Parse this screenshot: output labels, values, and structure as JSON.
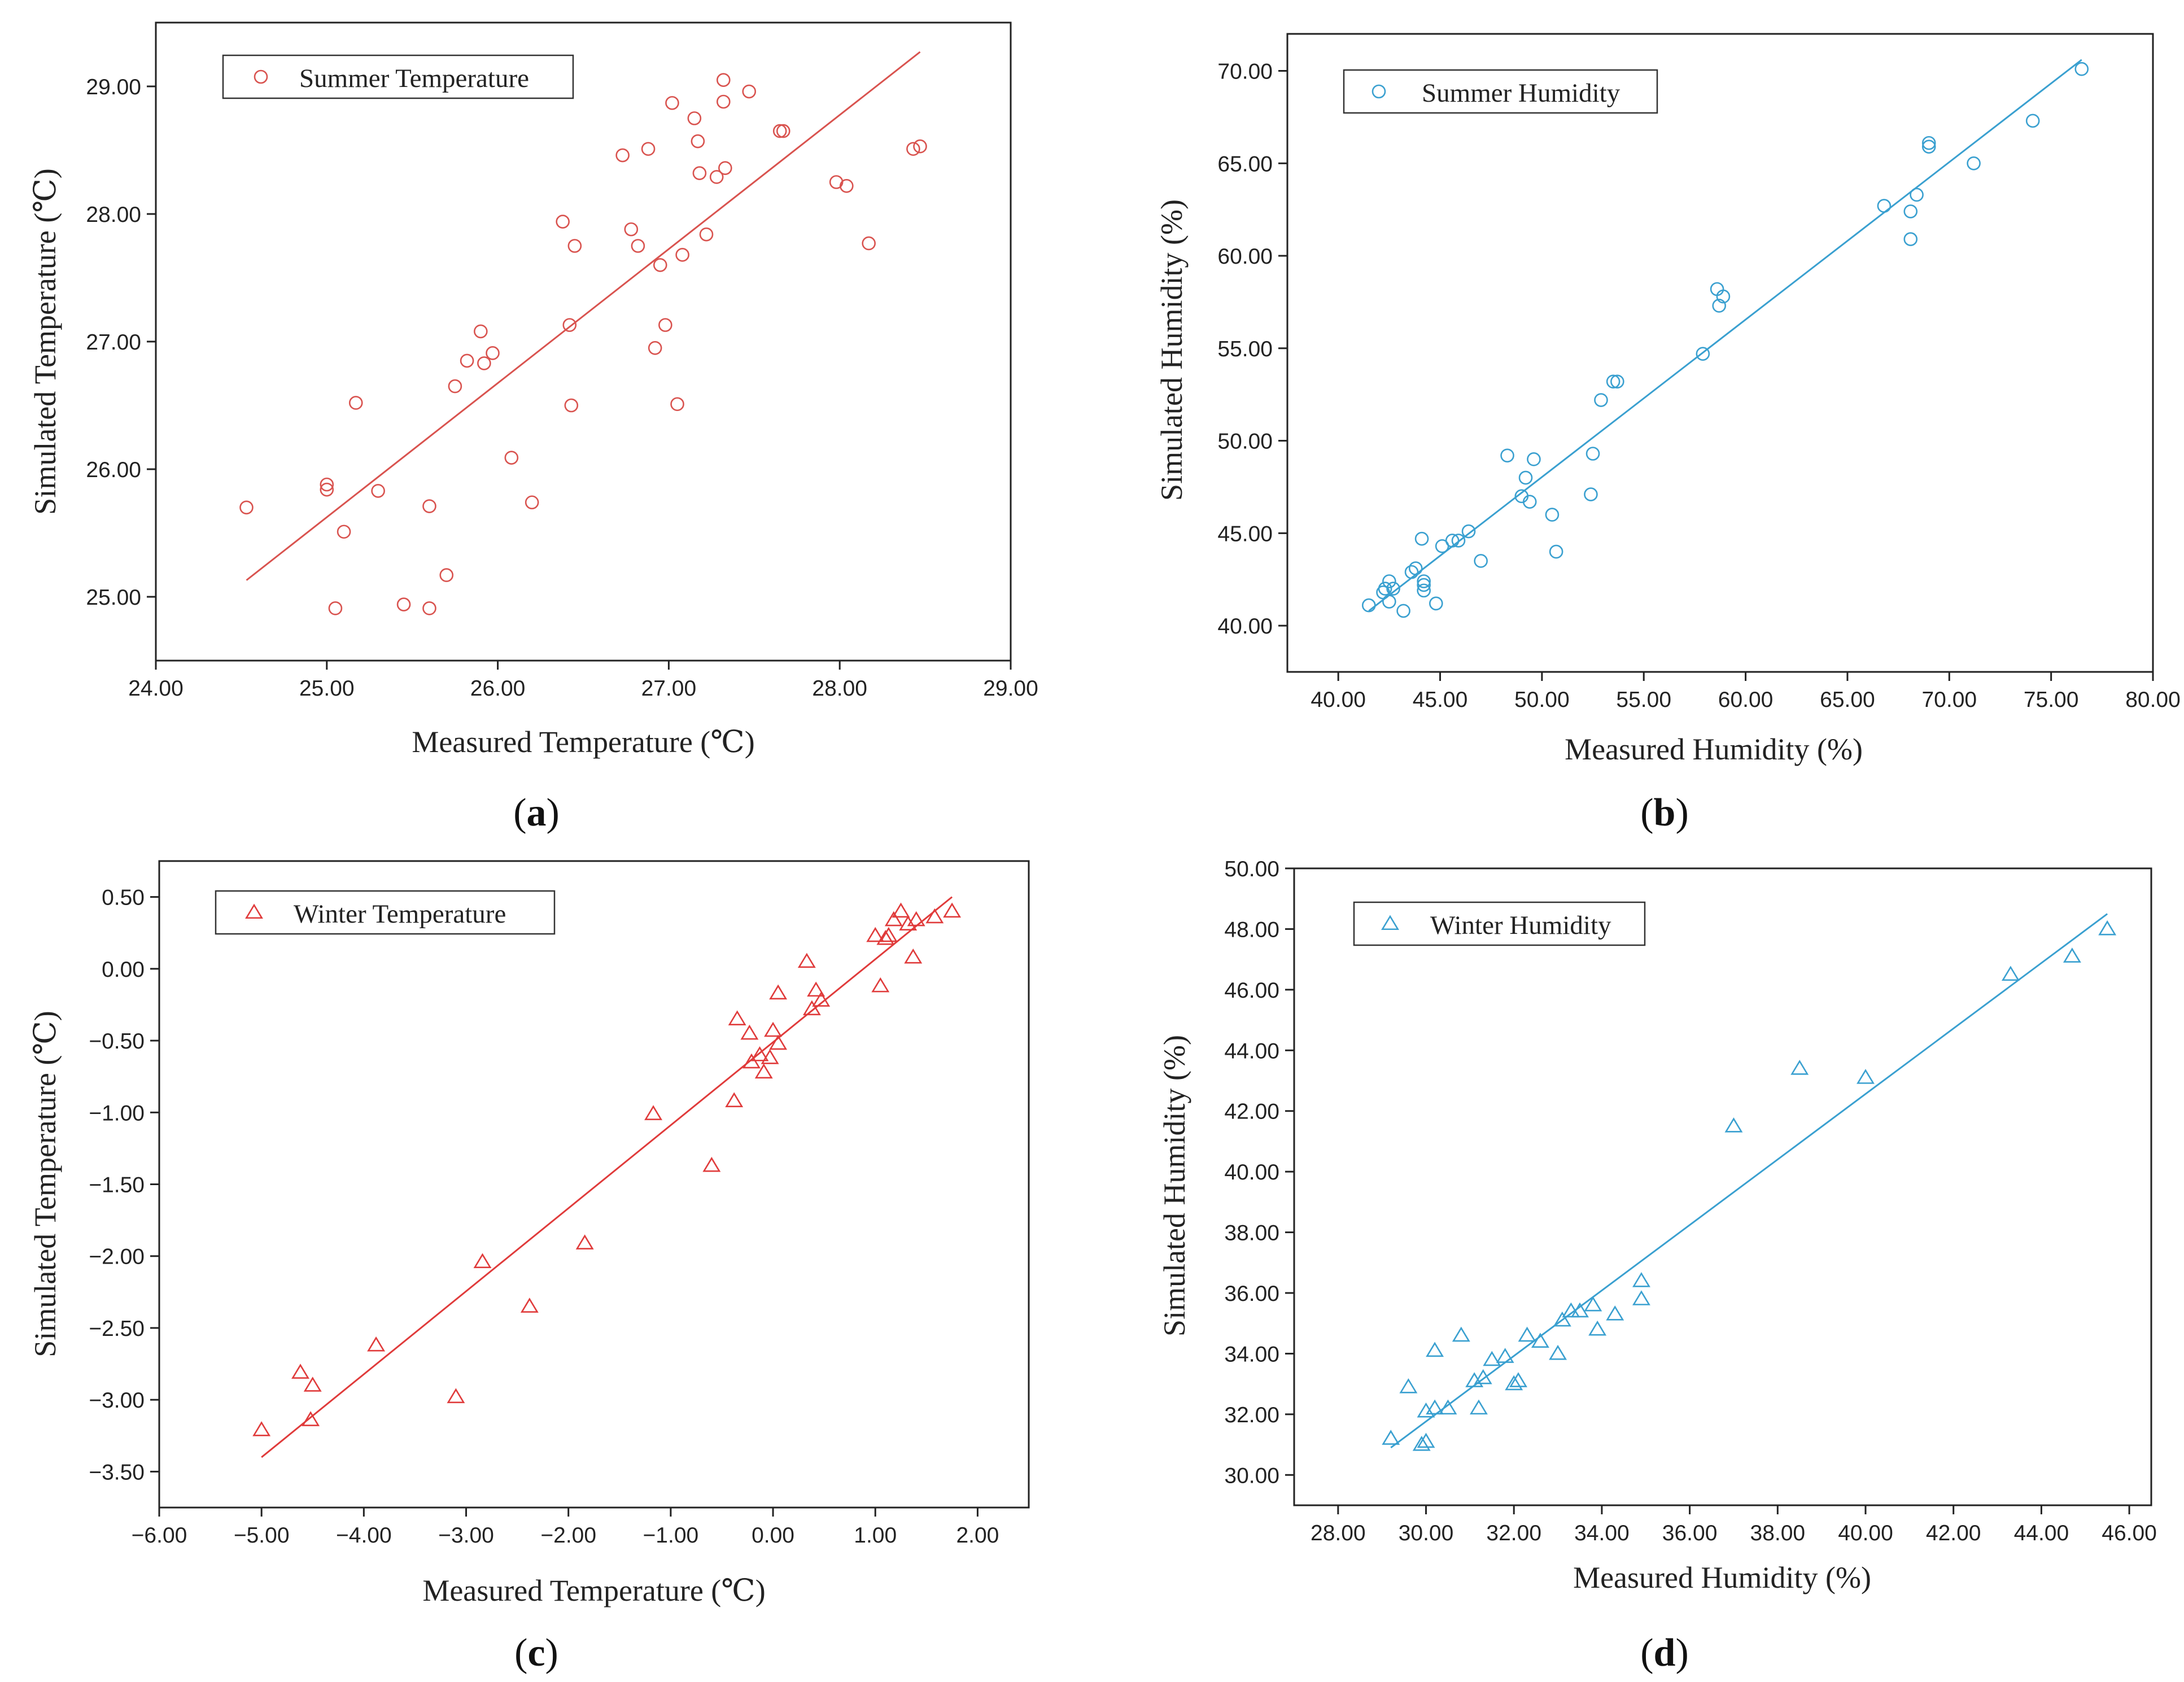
{
  "chart_data": [
    {
      "id": "a",
      "type": "scatter",
      "panel_label": "a",
      "xlabel": "Measured Temperature (℃)",
      "ylabel": "Simulated Temperature (℃)",
      "xlim": [
        24,
        29
      ],
      "ylim": [
        24.5,
        29.5
      ],
      "xticks": [
        24,
        25,
        26,
        27,
        28,
        29
      ],
      "yticks": [
        25,
        26,
        27,
        28,
        29
      ],
      "grid": false,
      "legend_position": "top-left",
      "marker": "circle",
      "color": "#d9534f",
      "series": [
        {
          "name": "Summer Temperature",
          "x": [
            24.53,
            25.0,
            25.0,
            25.05,
            25.1,
            25.17,
            25.3,
            25.45,
            25.6,
            25.6,
            25.7,
            25.75,
            25.82,
            25.9,
            25.92,
            25.97,
            26.08,
            26.2,
            26.38,
            26.42,
            26.43,
            26.45,
            26.73,
            26.78,
            26.82,
            26.88,
            26.92,
            26.95,
            26.98,
            27.02,
            27.05,
            27.08,
            27.15,
            27.17,
            27.18,
            27.22,
            27.28,
            27.32,
            27.32,
            27.33,
            27.47,
            27.65,
            27.67,
            27.98,
            28.04,
            28.17,
            28.43,
            28.47
          ],
          "y": [
            25.7,
            25.88,
            25.84,
            24.91,
            25.51,
            26.52,
            25.83,
            24.94,
            25.71,
            24.91,
            25.17,
            26.65,
            26.85,
            27.08,
            26.83,
            26.91,
            26.09,
            25.74,
            27.94,
            27.13,
            26.5,
            27.75,
            28.46,
            27.88,
            27.75,
            28.51,
            26.95,
            27.6,
            27.13,
            28.87,
            26.51,
            27.68,
            28.75,
            28.57,
            28.32,
            27.84,
            28.29,
            29.05,
            28.88,
            28.36,
            28.96,
            28.65,
            28.65,
            28.25,
            28.22,
            27.77,
            28.51,
            28.53
          ]
        }
      ],
      "fit_line": {
        "x": [
          24.53,
          28.47
        ],
        "y": [
          25.13,
          29.27
        ]
      }
    },
    {
      "id": "b",
      "type": "scatter",
      "panel_label": "b",
      "xlabel": "Measured Humidity (%)",
      "ylabel": "Simulated Humidity (%)",
      "xlim": [
        37.5,
        80
      ],
      "ylim": [
        37.5,
        72
      ],
      "xticks": [
        40,
        45,
        50,
        55,
        60,
        65,
        70,
        75,
        80
      ],
      "yticks": [
        40,
        45,
        50,
        55,
        60,
        65,
        70
      ],
      "grid": false,
      "legend_position": "top-left",
      "marker": "circle",
      "color": "#3aa0d0",
      "series": [
        {
          "name": "Summer Humidity",
          "x": [
            41.5,
            42.2,
            42.3,
            42.5,
            42.5,
            42.7,
            43.2,
            43.6,
            43.8,
            44.1,
            44.2,
            44.2,
            44.2,
            44.8,
            45.1,
            45.6,
            45.9,
            46.4,
            47.0,
            48.3,
            49.0,
            49.2,
            49.4,
            49.6,
            50.5,
            50.7,
            52.4,
            52.5,
            52.9,
            53.5,
            53.7,
            57.9,
            58.6,
            58.7,
            58.9,
            66.8,
            68.1,
            68.1,
            68.4,
            69.0,
            69.0,
            71.2,
            74.1,
            76.5
          ],
          "y": [
            41.1,
            41.8,
            42.0,
            41.3,
            42.4,
            42.0,
            40.8,
            42.9,
            43.1,
            44.7,
            42.4,
            41.9,
            42.2,
            41.2,
            44.3,
            44.6,
            44.6,
            45.1,
            43.5,
            49.2,
            47.0,
            48.0,
            46.7,
            49.0,
            46.0,
            44.0,
            47.1,
            49.3,
            52.2,
            53.2,
            53.2,
            54.7,
            58.2,
            57.3,
            57.8,
            62.7,
            60.9,
            62.4,
            63.3,
            65.9,
            66.1,
            65.0,
            67.3,
            70.1
          ]
        }
      ],
      "fit_line": {
        "x": [
          41.5,
          76.5
        ],
        "y": [
          40.8,
          70.6
        ]
      }
    },
    {
      "id": "c",
      "type": "scatter",
      "panel_label": "c",
      "xlabel": "Measured Temperature (℃)",
      "ylabel": "Simulated Temperature (℃)",
      "xlim": [
        -6,
        2.5
      ],
      "ylim": [
        -3.75,
        0.75
      ],
      "xticks": [
        -6,
        -5,
        -4,
        -3,
        -2,
        -1,
        0,
        1,
        2
      ],
      "yticks": [
        -3.5,
        -3.0,
        -2.5,
        -2.0,
        -1.5,
        -1.0,
        -0.5,
        0.0,
        0.5
      ],
      "grid": false,
      "legend_position": "top-left",
      "marker": "triangle",
      "color": "#e03b3b",
      "series": [
        {
          "name": "Winter Temperature",
          "x": [
            -5.0,
            -4.62,
            -4.52,
            -4.5,
            -3.88,
            -3.1,
            -2.84,
            -2.38,
            -1.84,
            -1.17,
            -0.6,
            -0.38,
            -0.35,
            -0.23,
            -0.21,
            -0.13,
            -0.09,
            -0.03,
            0.0,
            0.05,
            0.05,
            0.33,
            0.38,
            0.42,
            0.47,
            1.0,
            1.05,
            1.1,
            1.13,
            1.18,
            1.25,
            1.32,
            1.37,
            1.4,
            1.58,
            1.75
          ],
          "y": [
            -3.21,
            -2.81,
            -3.14,
            -2.9,
            -2.62,
            -2.98,
            -2.04,
            -2.35,
            -1.91,
            -1.01,
            -1.37,
            -0.92,
            -0.35,
            -0.45,
            -0.65,
            -0.6,
            -0.72,
            -0.62,
            -0.43,
            -0.17,
            -0.52,
            0.05,
            -0.28,
            -0.15,
            -0.22,
            0.23,
            -0.12,
            0.21,
            0.23,
            0.34,
            0.4,
            0.31,
            0.08,
            0.34,
            0.36,
            0.4
          ]
        }
      ],
      "fit_line": {
        "x": [
          -5.0,
          1.75
        ],
        "y": [
          -3.4,
          0.5
        ]
      }
    },
    {
      "id": "d",
      "type": "scatter",
      "panel_label": "d",
      "xlabel": "Measured Humidity (%)",
      "ylabel": "Simulated Humidity (%)",
      "xlim": [
        27,
        46.5
      ],
      "ylim": [
        29,
        50
      ],
      "xticks": [
        28,
        30,
        32,
        34,
        36,
        38,
        40,
        42,
        44,
        46
      ],
      "yticks": [
        30,
        32,
        34,
        36,
        38,
        40,
        42,
        44,
        46,
        48,
        50
      ],
      "grid": false,
      "legend_position": "top-left",
      "marker": "triangle",
      "color": "#3aa0d0",
      "series": [
        {
          "name": "Winter Humidity",
          "x": [
            29.2,
            29.6,
            29.9,
            30.0,
            30.0,
            30.2,
            30.2,
            30.5,
            30.8,
            31.1,
            31.2,
            31.3,
            31.5,
            31.8,
            32.0,
            32.1,
            32.3,
            32.6,
            33.0,
            33.1,
            33.3,
            33.5,
            33.8,
            33.9,
            34.3,
            34.9,
            34.9,
            37.0,
            38.5,
            40.0,
            43.3,
            44.7,
            45.5
          ],
          "y": [
            31.2,
            32.9,
            31.0,
            32.1,
            31.1,
            34.1,
            32.2,
            32.2,
            34.6,
            33.1,
            32.2,
            33.2,
            33.8,
            33.9,
            33.0,
            33.1,
            34.6,
            34.4,
            34.0,
            35.1,
            35.4,
            35.4,
            35.6,
            34.8,
            35.3,
            36.4,
            35.8,
            41.5,
            43.4,
            43.1,
            46.5,
            47.1,
            48.0
          ]
        }
      ],
      "fit_line": {
        "x": [
          29.2,
          45.5
        ],
        "y": [
          30.9,
          48.5
        ]
      }
    }
  ]
}
